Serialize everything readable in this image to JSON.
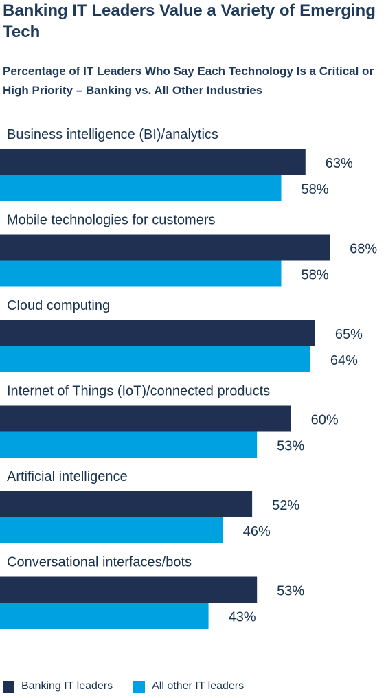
{
  "title": "Banking IT Leaders Value a Variety of Emerging Tech",
  "subtitle": "Percentage of IT Leaders Who Say Each Technology Is a Critical or High Priority – Banking vs. All Other Industries",
  "colors": {
    "banking": "#1f3053",
    "other": "#00a1e0",
    "text": "#1a3450"
  },
  "chart_data": {
    "type": "bar",
    "orientation": "horizontal",
    "categories": [
      "Business intelligence (BI)/analytics",
      "Mobile technologies for customers",
      "Cloud computing",
      "Internet of Things (IoT)/connected products",
      "Artificial intelligence",
      "Conversational interfaces/bots"
    ],
    "series": [
      {
        "name": "Banking IT leaders",
        "values": [
          63,
          68,
          65,
          60,
          52,
          53
        ],
        "labels": [
          "63%",
          "68%",
          "65%",
          "60%",
          "52%",
          "53%"
        ]
      },
      {
        "name": "All other IT leaders",
        "values": [
          58,
          58,
          64,
          53,
          46,
          43
        ],
        "labels": [
          "58%",
          "58%",
          "64%",
          "53%",
          "46%",
          "43%"
        ]
      }
    ],
    "unit": "%",
    "legend": "bottom-left",
    "grid": false
  }
}
